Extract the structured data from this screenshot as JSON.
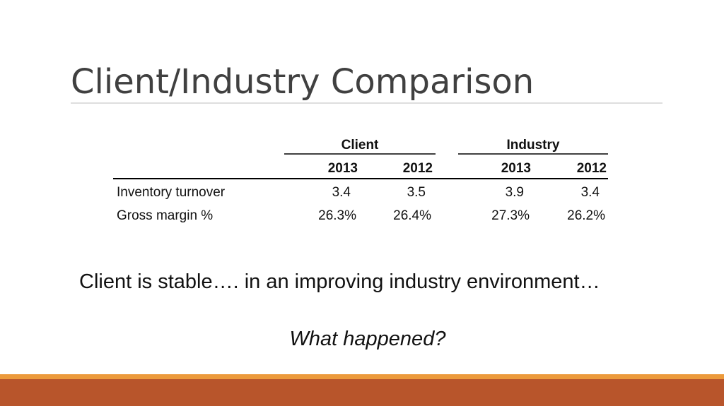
{
  "slide": {
    "title": "Client/Industry Comparison",
    "table": {
      "groups": [
        "Client",
        "Industry"
      ],
      "years": [
        "2013",
        "2012",
        "2013",
        "2012"
      ],
      "rows": [
        [
          "Inventory turnover",
          "3.4",
          "3.5",
          "3.9",
          "3.4"
        ],
        [
          "Gross margin %",
          "26.3%",
          "26.4%",
          "27.3%",
          "26.2%"
        ]
      ]
    },
    "statement": "Client is stable…. in an improving industry environment…",
    "question": "What happened?"
  }
}
